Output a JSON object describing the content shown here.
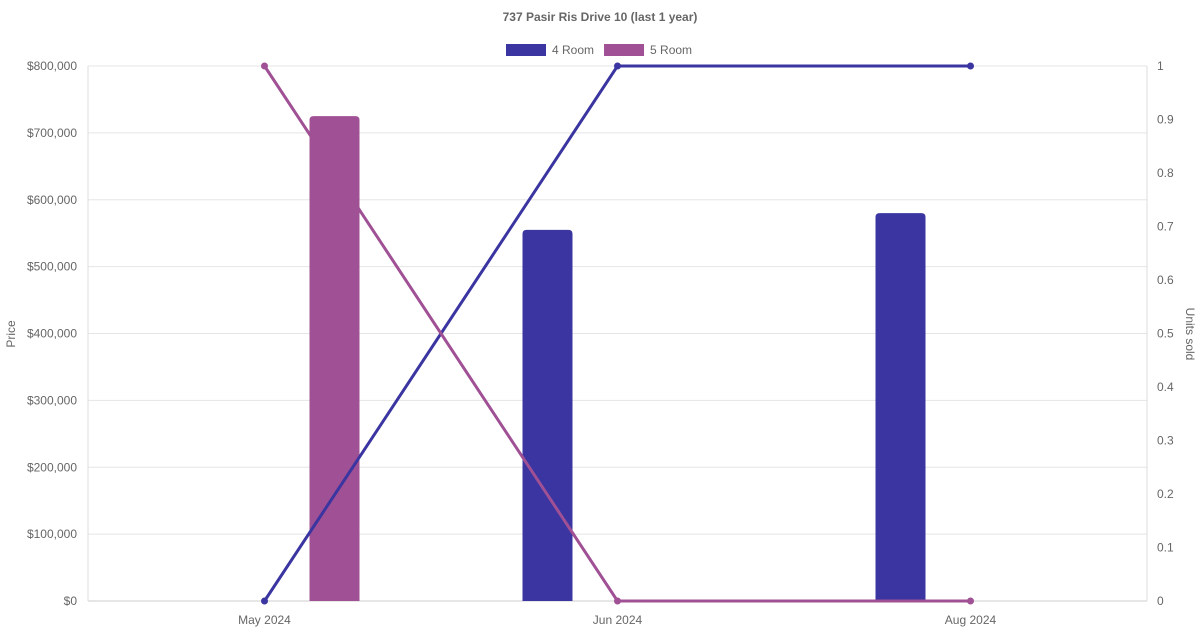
{
  "chart_data": {
    "type": "bar",
    "title": "737 Pasir Ris Drive 10 (last 1 year)",
    "categories": [
      "May 2024",
      "Jun 2024",
      "Aug 2024"
    ],
    "y_left": {
      "label": "Price",
      "range": [
        0,
        800000
      ],
      "ticks": [
        "$0",
        "$100,000",
        "$200,000",
        "$300,000",
        "$400,000",
        "$500,000",
        "$600,000",
        "$700,000",
        "$800,000"
      ]
    },
    "y_right": {
      "label": "Units sold",
      "range": [
        0,
        1
      ],
      "ticks": [
        "0",
        "0.1",
        "0.2",
        "0.3",
        "0.4",
        "0.5",
        "0.6",
        "0.7",
        "0.8",
        "0.9",
        "1"
      ]
    },
    "grid": true,
    "legend_position": "top",
    "series": [
      {
        "name": "4 Room",
        "color": "#3a35a0",
        "price": [
          null,
          555000,
          580000
        ],
        "units_sold": [
          0,
          1,
          1
        ]
      },
      {
        "name": "5 Room",
        "color": "#a05094",
        "price": [
          725000,
          null,
          null
        ],
        "units_sold": [
          1,
          0,
          0
        ]
      }
    ]
  }
}
